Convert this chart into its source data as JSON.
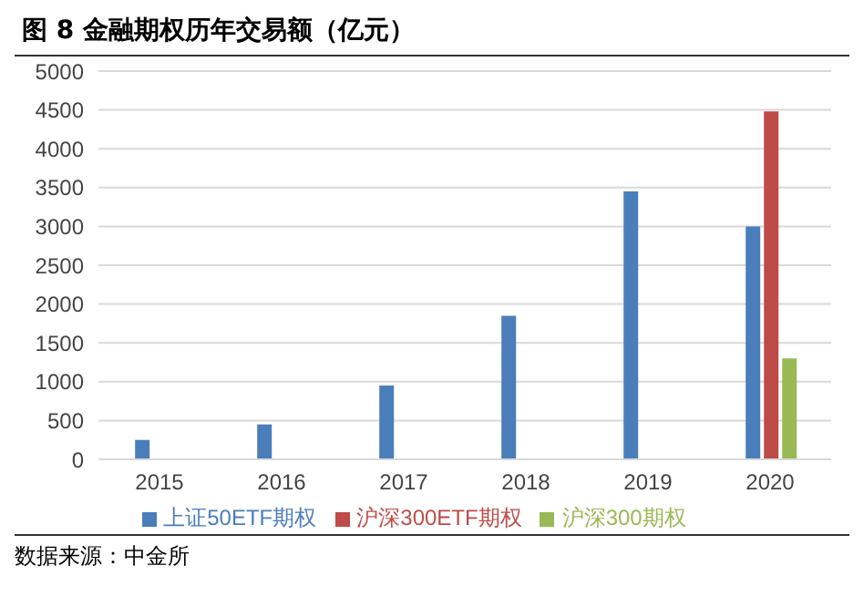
{
  "chart_data": {
    "type": "bar",
    "title": "图 8 金融期权历年交易额（亿元）",
    "categories": [
      "2015",
      "2016",
      "2017",
      "2018",
      "2019",
      "2020"
    ],
    "series": [
      {
        "name": "上证50ETF期权",
        "color": "#4a7ebb",
        "values": [
          250,
          450,
          950,
          1850,
          3450,
          3000
        ]
      },
      {
        "name": "沪深300ETF期权",
        "color": "#be4b48",
        "values": [
          null,
          null,
          null,
          null,
          null,
          4480
        ]
      },
      {
        "name": "沪深300期权",
        "color": "#98b954",
        "values": [
          null,
          null,
          null,
          null,
          null,
          1300
        ]
      }
    ],
    "ylim": [
      0,
      5000
    ],
    "yticks": [
      0,
      500,
      1000,
      1500,
      2000,
      2500,
      3000,
      3500,
      4000,
      4500,
      5000
    ],
    "grid": "y",
    "legend": "bottom",
    "annotations": [
      "数据来源：中金所"
    ]
  }
}
